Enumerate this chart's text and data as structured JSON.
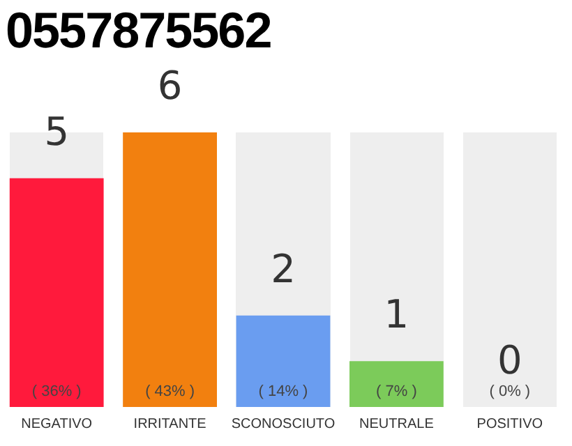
{
  "chart_data": {
    "type": "bar",
    "title": "0557875562",
    "categories": [
      "NEGATIVO",
      "IRRITANTE",
      "SCONOSCIUTO",
      "NEUTRALE",
      "POSITIVO"
    ],
    "values": [
      5,
      6,
      2,
      1,
      0
    ],
    "colors": [
      "#ff1a3c",
      "#f2800f",
      "#6a9df0",
      "#7ccb5a",
      "#9a9a9a"
    ],
    "data_labels": true,
    "annotations": [
      "( 36% )",
      "( 43% )",
      "( 14% )",
      "( 7% )",
      "( 0% )"
    ],
    "grid": false,
    "legend": false,
    "tick_labels": "x"
  }
}
